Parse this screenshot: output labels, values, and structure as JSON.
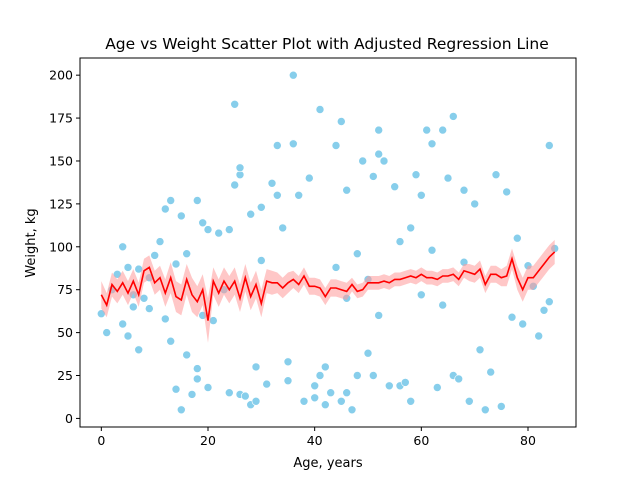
{
  "chart_data": {
    "type": "scatter",
    "title": "Age vs Weight Scatter Plot with Adjusted Regression Line",
    "xlabel": "Age, years",
    "ylabel": "Weight, kg",
    "xlim": [
      -4,
      89
    ],
    "ylim": [
      -5,
      210
    ],
    "xticks": [
      0,
      20,
      40,
      60,
      80
    ],
    "yticks": [
      0,
      25,
      50,
      75,
      100,
      125,
      150,
      175,
      200
    ],
    "grid": false,
    "legend": "none",
    "colors": {
      "scatter": "#87ceeb",
      "scatter_edge": "#ffffff",
      "line": "#ff0000",
      "band": "#ff9999"
    },
    "series": [
      {
        "kind": "scatter",
        "points": [
          [
            0,
            61
          ],
          [
            1,
            50
          ],
          [
            2,
            75
          ],
          [
            3,
            84
          ],
          [
            4,
            100
          ],
          [
            4,
            55
          ],
          [
            5,
            88
          ],
          [
            5,
            48
          ],
          [
            6,
            72
          ],
          [
            6,
            65
          ],
          [
            7,
            40
          ],
          [
            7,
            87
          ],
          [
            8,
            70
          ],
          [
            9,
            82
          ],
          [
            9,
            64
          ],
          [
            10,
            95
          ],
          [
            11,
            103
          ],
          [
            12,
            122
          ],
          [
            12,
            58
          ],
          [
            13,
            127
          ],
          [
            13,
            45
          ],
          [
            14,
            17
          ],
          [
            14,
            90
          ],
          [
            15,
            5
          ],
          [
            15,
            118
          ],
          [
            16,
            96
          ],
          [
            16,
            37
          ],
          [
            17,
            14
          ],
          [
            18,
            127
          ],
          [
            18,
            29
          ],
          [
            18,
            23
          ],
          [
            19,
            114
          ],
          [
            19,
            60
          ],
          [
            20,
            18
          ],
          [
            20,
            110
          ],
          [
            21,
            57
          ],
          [
            22,
            108
          ],
          [
            23,
            75
          ],
          [
            24,
            15
          ],
          [
            24,
            110
          ],
          [
            25,
            183
          ],
          [
            25,
            136
          ],
          [
            26,
            142
          ],
          [
            26,
            146
          ],
          [
            26,
            14
          ],
          [
            27,
            13
          ],
          [
            28,
            119
          ],
          [
            28,
            8
          ],
          [
            29,
            30
          ],
          [
            29,
            10
          ],
          [
            30,
            92
          ],
          [
            30,
            123
          ],
          [
            31,
            20
          ],
          [
            32,
            137
          ],
          [
            33,
            130
          ],
          [
            33,
            159
          ],
          [
            34,
            111
          ],
          [
            35,
            22
          ],
          [
            35,
            33
          ],
          [
            36,
            200
          ],
          [
            36,
            160
          ],
          [
            37,
            130
          ],
          [
            38,
            10
          ],
          [
            39,
            140
          ],
          [
            40,
            19
          ],
          [
            40,
            12
          ],
          [
            41,
            180
          ],
          [
            41,
            25
          ],
          [
            42,
            30
          ],
          [
            42,
            8
          ],
          [
            43,
            15
          ],
          [
            44,
            159
          ],
          [
            45,
            173
          ],
          [
            45,
            10
          ],
          [
            46,
            15
          ],
          [
            46,
            133
          ],
          [
            47,
            5
          ],
          [
            48,
            25
          ],
          [
            49,
            150
          ],
          [
            50,
            38
          ],
          [
            51,
            25
          ],
          [
            51,
            141
          ],
          [
            52,
            168
          ],
          [
            52,
            154
          ],
          [
            53,
            150
          ],
          [
            54,
            19
          ],
          [
            55,
            135
          ],
          [
            56,
            19
          ],
          [
            57,
            21
          ],
          [
            58,
            10
          ],
          [
            59,
            142
          ],
          [
            60,
            130
          ],
          [
            61,
            168
          ],
          [
            62,
            160
          ],
          [
            63,
            18
          ],
          [
            64,
            168
          ],
          [
            65,
            140
          ],
          [
            66,
            176
          ],
          [
            66,
            25
          ],
          [
            67,
            23
          ],
          [
            68,
            133
          ],
          [
            69,
            10
          ],
          [
            70,
            125
          ],
          [
            71,
            40
          ],
          [
            72,
            5
          ],
          [
            73,
            27
          ],
          [
            74,
            142
          ],
          [
            75,
            7
          ],
          [
            76,
            132
          ],
          [
            77,
            59
          ],
          [
            78,
            105
          ],
          [
            79,
            55
          ],
          [
            80,
            89
          ],
          [
            81,
            77
          ],
          [
            82,
            48
          ],
          [
            83,
            63
          ],
          [
            84,
            159
          ],
          [
            84,
            68
          ],
          [
            85,
            99
          ],
          [
            44,
            88
          ],
          [
            48,
            96
          ],
          [
            52,
            60
          ],
          [
            56,
            103
          ],
          [
            60,
            72
          ],
          [
            64,
            66
          ],
          [
            68,
            91
          ],
          [
            58,
            111
          ],
          [
            50,
            81
          ],
          [
            62,
            98
          ],
          [
            46,
            70
          ]
        ]
      },
      {
        "kind": "line",
        "x": [
          0,
          1,
          2,
          3,
          4,
          5,
          6,
          7,
          8,
          9,
          10,
          11,
          12,
          13,
          14,
          15,
          16,
          17,
          18,
          19,
          20,
          21,
          22,
          23,
          24,
          25,
          26,
          27,
          28,
          29,
          30,
          31,
          32,
          33,
          34,
          35,
          36,
          37,
          38,
          39,
          40,
          41,
          42,
          43,
          44,
          45,
          46,
          47,
          48,
          49,
          50,
          51,
          52,
          53,
          54,
          55,
          56,
          57,
          58,
          59,
          60,
          61,
          62,
          63,
          64,
          65,
          66,
          67,
          68,
          69,
          70,
          71,
          72,
          73,
          74,
          75,
          76,
          77,
          78,
          79,
          80,
          81,
          82,
          83,
          84,
          85
        ],
        "y": [
          72,
          66,
          78,
          74,
          79,
          73,
          80,
          72,
          86,
          88,
          79,
          82,
          73,
          82,
          71,
          69,
          81,
          72,
          68,
          75,
          57,
          80,
          73,
          80,
          75,
          80,
          70,
          82,
          71,
          78,
          67,
          80,
          79,
          79,
          76,
          79,
          81,
          78,
          83,
          77,
          77,
          76,
          71,
          76,
          76,
          75,
          74,
          78,
          74,
          75,
          79,
          79,
          79,
          80,
          79,
          81,
          81,
          82,
          83,
          82,
          84,
          82,
          82,
          81,
          83,
          83,
          84,
          81,
          86,
          85,
          84,
          87,
          78,
          84,
          84,
          82,
          83,
          93,
          82,
          75,
          82,
          82,
          86,
          90,
          94,
          97
        ],
        "band": [
          8,
          7,
          7,
          7,
          7,
          7,
          7,
          7,
          7,
          7,
          7,
          7,
          8,
          9,
          9,
          9,
          9,
          10,
          9,
          9,
          13,
          8,
          8,
          8,
          8,
          8,
          8,
          8,
          8,
          8,
          8,
          7,
          7,
          6,
          6,
          6,
          5,
          5,
          5,
          5,
          5,
          5,
          5,
          5,
          5,
          5,
          5,
          4,
          4,
          4,
          4,
          4,
          4,
          4,
          4,
          4,
          4,
          4,
          4,
          4,
          4,
          4,
          4,
          4,
          4,
          4,
          4,
          4,
          4,
          5,
          5,
          5,
          5,
          5,
          5,
          5,
          6,
          6,
          7,
          7,
          7,
          7,
          7,
          7,
          7,
          7
        ]
      }
    ]
  }
}
